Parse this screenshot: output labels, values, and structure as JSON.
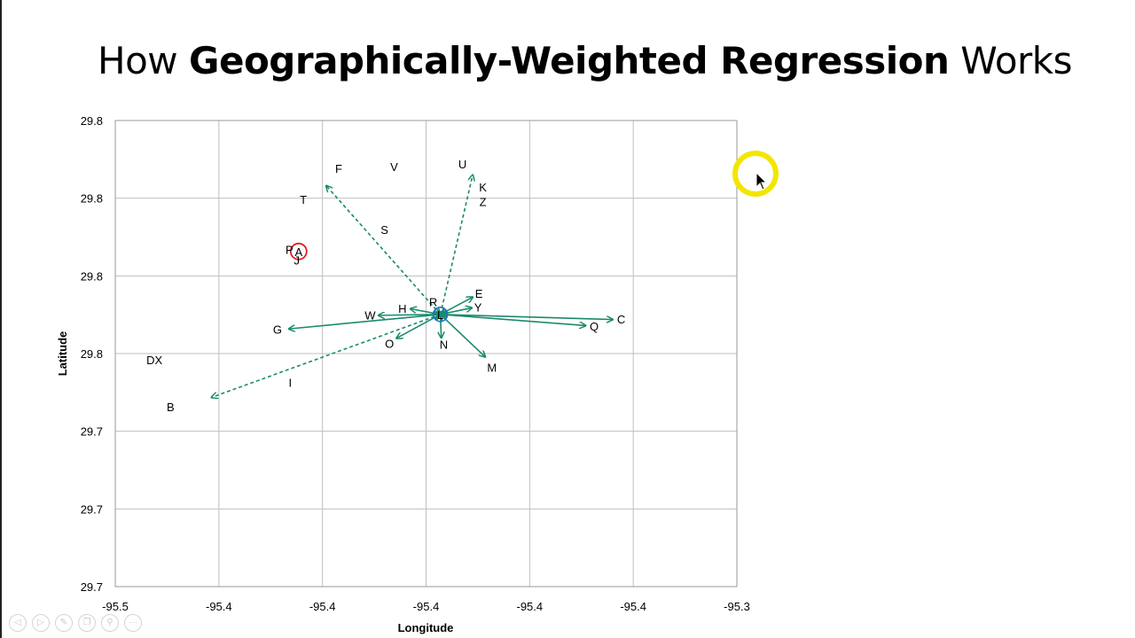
{
  "slide": {
    "title_prefix": "How ",
    "title_bold": "Geographically-Weighted Regression",
    "title_suffix": " Works"
  },
  "nav_buttons": [
    {
      "name": "previous-slide-button",
      "glyph": "◁"
    },
    {
      "name": "next-slide-button",
      "glyph": "▷"
    },
    {
      "name": "pen-tool-button",
      "glyph": "✎"
    },
    {
      "name": "copy-slide-button",
      "glyph": "❐"
    },
    {
      "name": "zoom-button",
      "glyph": "⚲"
    },
    {
      "name": "more-options-button",
      "glyph": "···"
    }
  ],
  "chart_data": {
    "type": "scatter",
    "title": "",
    "xlabel": "Longitude",
    "ylabel": "Latitude",
    "xlim": [
      -95.5,
      -95.3
    ],
    "ylim": [
      29.7,
      29.8
    ],
    "grid": true,
    "x_tick_labels": [
      "-95.5",
      "-95.4",
      "-95.4",
      "-95.4",
      "-95.4",
      "-95.4",
      "-95.3"
    ],
    "y_tick_labels": [
      "29.8",
      "29.8",
      "29.8",
      "29.8",
      "29.7",
      "29.7",
      "29.7"
    ],
    "center_point": "L",
    "highlighted_point": "A",
    "arrow_color": "#1a8a6e",
    "center_ring_color": "#1f6fd1",
    "highlight_ring_color": "#e02020",
    "points": [
      {
        "label": "F",
        "x": -95.4281,
        "y": 29.7897
      },
      {
        "label": "V",
        "x": -95.4103,
        "y": 29.7901
      },
      {
        "label": "U",
        "x": -95.3883,
        "y": 29.7907
      },
      {
        "label": "K",
        "x": -95.3817,
        "y": 29.7857
      },
      {
        "label": "Z",
        "x": -95.3817,
        "y": 29.7826
      },
      {
        "label": "T",
        "x": -95.4395,
        "y": 29.7831
      },
      {
        "label": "S",
        "x": -95.4134,
        "y": 29.7766
      },
      {
        "label": "P",
        "x": -95.444,
        "y": 29.7723
      },
      {
        "label": "A",
        "x": -95.441,
        "y": 29.7719
      },
      {
        "label": "J",
        "x": -95.4416,
        "y": 29.7701
      },
      {
        "label": "E",
        "x": -95.383,
        "y": 29.7629
      },
      {
        "label": "R",
        "x": -95.3977,
        "y": 29.7611
      },
      {
        "label": "Y",
        "x": -95.3833,
        "y": 29.76
      },
      {
        "label": "H",
        "x": -95.4076,
        "y": 29.7597
      },
      {
        "label": "L",
        "x": -95.3954,
        "y": 29.7584
      },
      {
        "label": "W",
        "x": -95.418,
        "y": 29.7583
      },
      {
        "label": "C",
        "x": -95.3372,
        "y": 29.7574
      },
      {
        "label": "Q",
        "x": -95.3459,
        "y": 29.7559
      },
      {
        "label": "G",
        "x": -95.4478,
        "y": 29.7552
      },
      {
        "label": "O",
        "x": -95.4118,
        "y": 29.7522
      },
      {
        "label": "N",
        "x": -95.3943,
        "y": 29.752
      },
      {
        "label": "M",
        "x": -95.3788,
        "y": 29.7471
      },
      {
        "label": "DX",
        "x": -95.4874,
        "y": 29.7487
      },
      {
        "label": "I",
        "x": -95.4437,
        "y": 29.7438
      },
      {
        "label": "B",
        "x": -95.4822,
        "y": 29.7386
      }
    ],
    "arrows": [
      {
        "to": "F",
        "dashed": true,
        "tip_x": -95.4321,
        "tip_y": 29.786
      },
      {
        "to": "U",
        "dashed": true,
        "tip_x": -95.385,
        "tip_y": 29.7883
      },
      {
        "to": "E",
        "dashed": false,
        "tip_x": -95.385,
        "tip_y": 29.7621
      },
      {
        "to": "Y",
        "dashed": false,
        "tip_x": -95.3853,
        "tip_y": 29.7598
      },
      {
        "to": "H",
        "dashed": false,
        "tip_x": -95.405,
        "tip_y": 29.7596
      },
      {
        "to": "W",
        "dashed": false,
        "tip_x": -95.4153,
        "tip_y": 29.7582
      },
      {
        "to": "C",
        "dashed": false,
        "tip_x": -95.34,
        "tip_y": 29.7573
      },
      {
        "to": "Q",
        "dashed": false,
        "tip_x": -95.3487,
        "tip_y": 29.756
      },
      {
        "to": "G",
        "dashed": false,
        "tip_x": -95.4441,
        "tip_y": 29.7553
      },
      {
        "to": "O",
        "dashed": false,
        "tip_x": -95.4095,
        "tip_y": 29.7533
      },
      {
        "to": "N",
        "dashed": false,
        "tip_x": -95.3951,
        "tip_y": 29.7534
      },
      {
        "to": "M",
        "dashed": false,
        "tip_x": -95.381,
        "tip_y": 29.7493
      },
      {
        "to": "B",
        "dashed": true,
        "tip_x": -95.469,
        "tip_y": 29.7406
      }
    ]
  }
}
